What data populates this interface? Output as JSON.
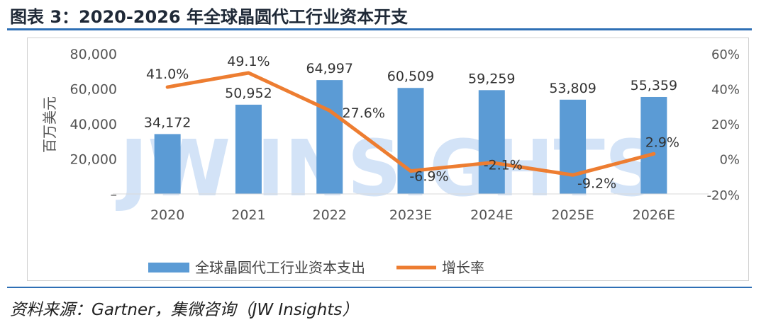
{
  "figure_title": "图表 3：2020-2026 年全球晶圆代工行业资本开支",
  "source_text": "资料来源：Gartner，集微咨询（JW Insights）",
  "watermark_text": "JW INSIGHTS",
  "colors": {
    "bar": "#5b9bd5",
    "line": "#ed7d31",
    "rule": "#2e6fb5",
    "watermark": "#bcd4f2"
  },
  "chart_data": {
    "type": "bar",
    "title": "",
    "ylabel": "百万美元",
    "categories": [
      "2020",
      "2021",
      "2022",
      "2023E",
      "2024E",
      "2025E",
      "2026E"
    ],
    "ylim": [
      0,
      80000
    ],
    "y2lim": [
      -20,
      60
    ],
    "yticks": [
      "–",
      "20,000",
      "40,000",
      "60,000",
      "80,000"
    ],
    "y2ticks": [
      "-20%",
      "0%",
      "20%",
      "40%",
      "60%"
    ],
    "series": [
      {
        "name": "全球晶圆代工行业资本支出",
        "kind": "bar",
        "axis": "left",
        "values": [
          34172,
          50952,
          64997,
          60509,
          59259,
          53809,
          55359
        ],
        "labels": [
          "34,172",
          "50,952",
          "64,997",
          "60,509",
          "59,259",
          "53,809",
          "55,359"
        ]
      },
      {
        "name": "增长率",
        "kind": "line",
        "axis": "right",
        "values": [
          41.0,
          49.1,
          27.6,
          -6.9,
          -2.1,
          -9.2,
          2.9
        ],
        "labels": [
          "41.0%",
          "49.1%",
          "27.6%",
          "-6.9%",
          "-2.1%",
          "-9.2%",
          "2.9%"
        ]
      }
    ],
    "legend_position": "bottom",
    "grid": false
  }
}
